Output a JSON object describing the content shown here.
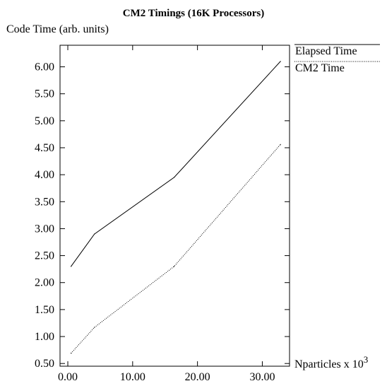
{
  "chart_data": {
    "type": "line",
    "title": "CM2 Timings (16K Processors)",
    "ylabel": "Code Time (arb. units)",
    "xlabel": "Nparticles x 10",
    "xlabel_superscript": "3",
    "xlim": [
      -1.2,
      34.2
    ],
    "ylim": [
      0.45,
      6.4
    ],
    "xticks": [
      0,
      10,
      20,
      30
    ],
    "xtick_labels": [
      "0.00",
      "10.00",
      "20.00",
      "30.00"
    ],
    "yticks": [
      0.5,
      1.0,
      1.5,
      2.0,
      2.5,
      3.0,
      3.5,
      4.0,
      4.5,
      5.0,
      5.5,
      6.0
    ],
    "ytick_labels": [
      "0.50",
      "1.00",
      "1.50",
      "2.00",
      "2.50",
      "3.00",
      "3.50",
      "4.00",
      "4.50",
      "5.00",
      "5.50",
      "6.00"
    ],
    "grid": false,
    "legend_position": "right-outside-top",
    "series": [
      {
        "name": "Elapsed Time",
        "style": "solid",
        "x": [
          0.5,
          4.1,
          16.4,
          32.8
        ],
        "y": [
          2.3,
          2.9,
          3.95,
          6.1
        ]
      },
      {
        "name": "CM2 Time",
        "style": "dotted",
        "x": [
          0.5,
          4.1,
          16.4,
          32.8
        ],
        "y": [
          0.69,
          1.17,
          2.3,
          4.56
        ]
      }
    ]
  }
}
